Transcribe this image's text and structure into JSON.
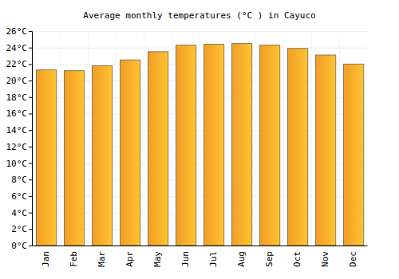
{
  "chart_data": {
    "type": "bar",
    "title": "Average monthly temperatures (°C ) in Cayuco",
    "categories": [
      "Jan",
      "Feb",
      "Mar",
      "Apr",
      "May",
      "Jun",
      "Jul",
      "Aug",
      "Sep",
      "Oct",
      "Nov",
      "Dec"
    ],
    "values": [
      21.3,
      21.2,
      21.8,
      22.5,
      23.5,
      24.3,
      24.4,
      24.5,
      24.3,
      23.9,
      23.1,
      22.0
    ],
    "color": "#ffa629",
    "ylim": [
      0,
      26
    ],
    "yticks": [
      {
        "value": 0,
        "label": "0°C"
      },
      {
        "value": 2,
        "label": "2°C"
      },
      {
        "value": 4,
        "label": "4°C"
      },
      {
        "value": 6,
        "label": "6°C"
      },
      {
        "value": 8,
        "label": "8°C"
      },
      {
        "value": 10,
        "label": "10°C"
      },
      {
        "value": 12,
        "label": "12°C"
      },
      {
        "value": 14,
        "label": "14°C"
      },
      {
        "value": 16,
        "label": "16°C"
      },
      {
        "value": 18,
        "label": "18°C"
      },
      {
        "value": 20,
        "label": "20°C"
      },
      {
        "value": 22,
        "label": "22°C"
      },
      {
        "value": 24,
        "label": "24°C"
      },
      {
        "value": 26,
        "label": "26°C"
      }
    ],
    "grid": true
  }
}
